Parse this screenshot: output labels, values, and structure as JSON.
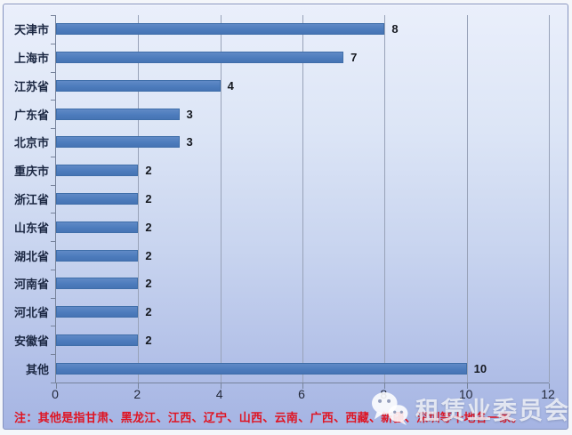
{
  "chart_data": {
    "type": "bar",
    "orientation": "horizontal",
    "title": "",
    "categories": [
      "天津市",
      "上海市",
      "江苏省",
      "广东省",
      "北京市",
      "重庆市",
      "浙江省",
      "山东省",
      "湖北省",
      "河南省",
      "河北省",
      "安徽省",
      "其他"
    ],
    "values": [
      8,
      7,
      4,
      3,
      3,
      2,
      2,
      2,
      2,
      2,
      2,
      2,
      10
    ],
    "xlim": [
      0,
      12
    ],
    "x_ticks": [
      0,
      2,
      4,
      6,
      8,
      10,
      12
    ],
    "grid": "vertical-on",
    "legend": "none",
    "data_labels": true,
    "bar_color": "#4d7cbd"
  },
  "footnote": {
    "text": "注：其他是指甘肃、黑龙江、江西、辽宁、山西、云南、广西、西藏、新疆、深圳等十地各一家。",
    "color": "#df1422"
  },
  "watermark": {
    "text": "租赁业委员会",
    "icon": "wechat-icon"
  }
}
